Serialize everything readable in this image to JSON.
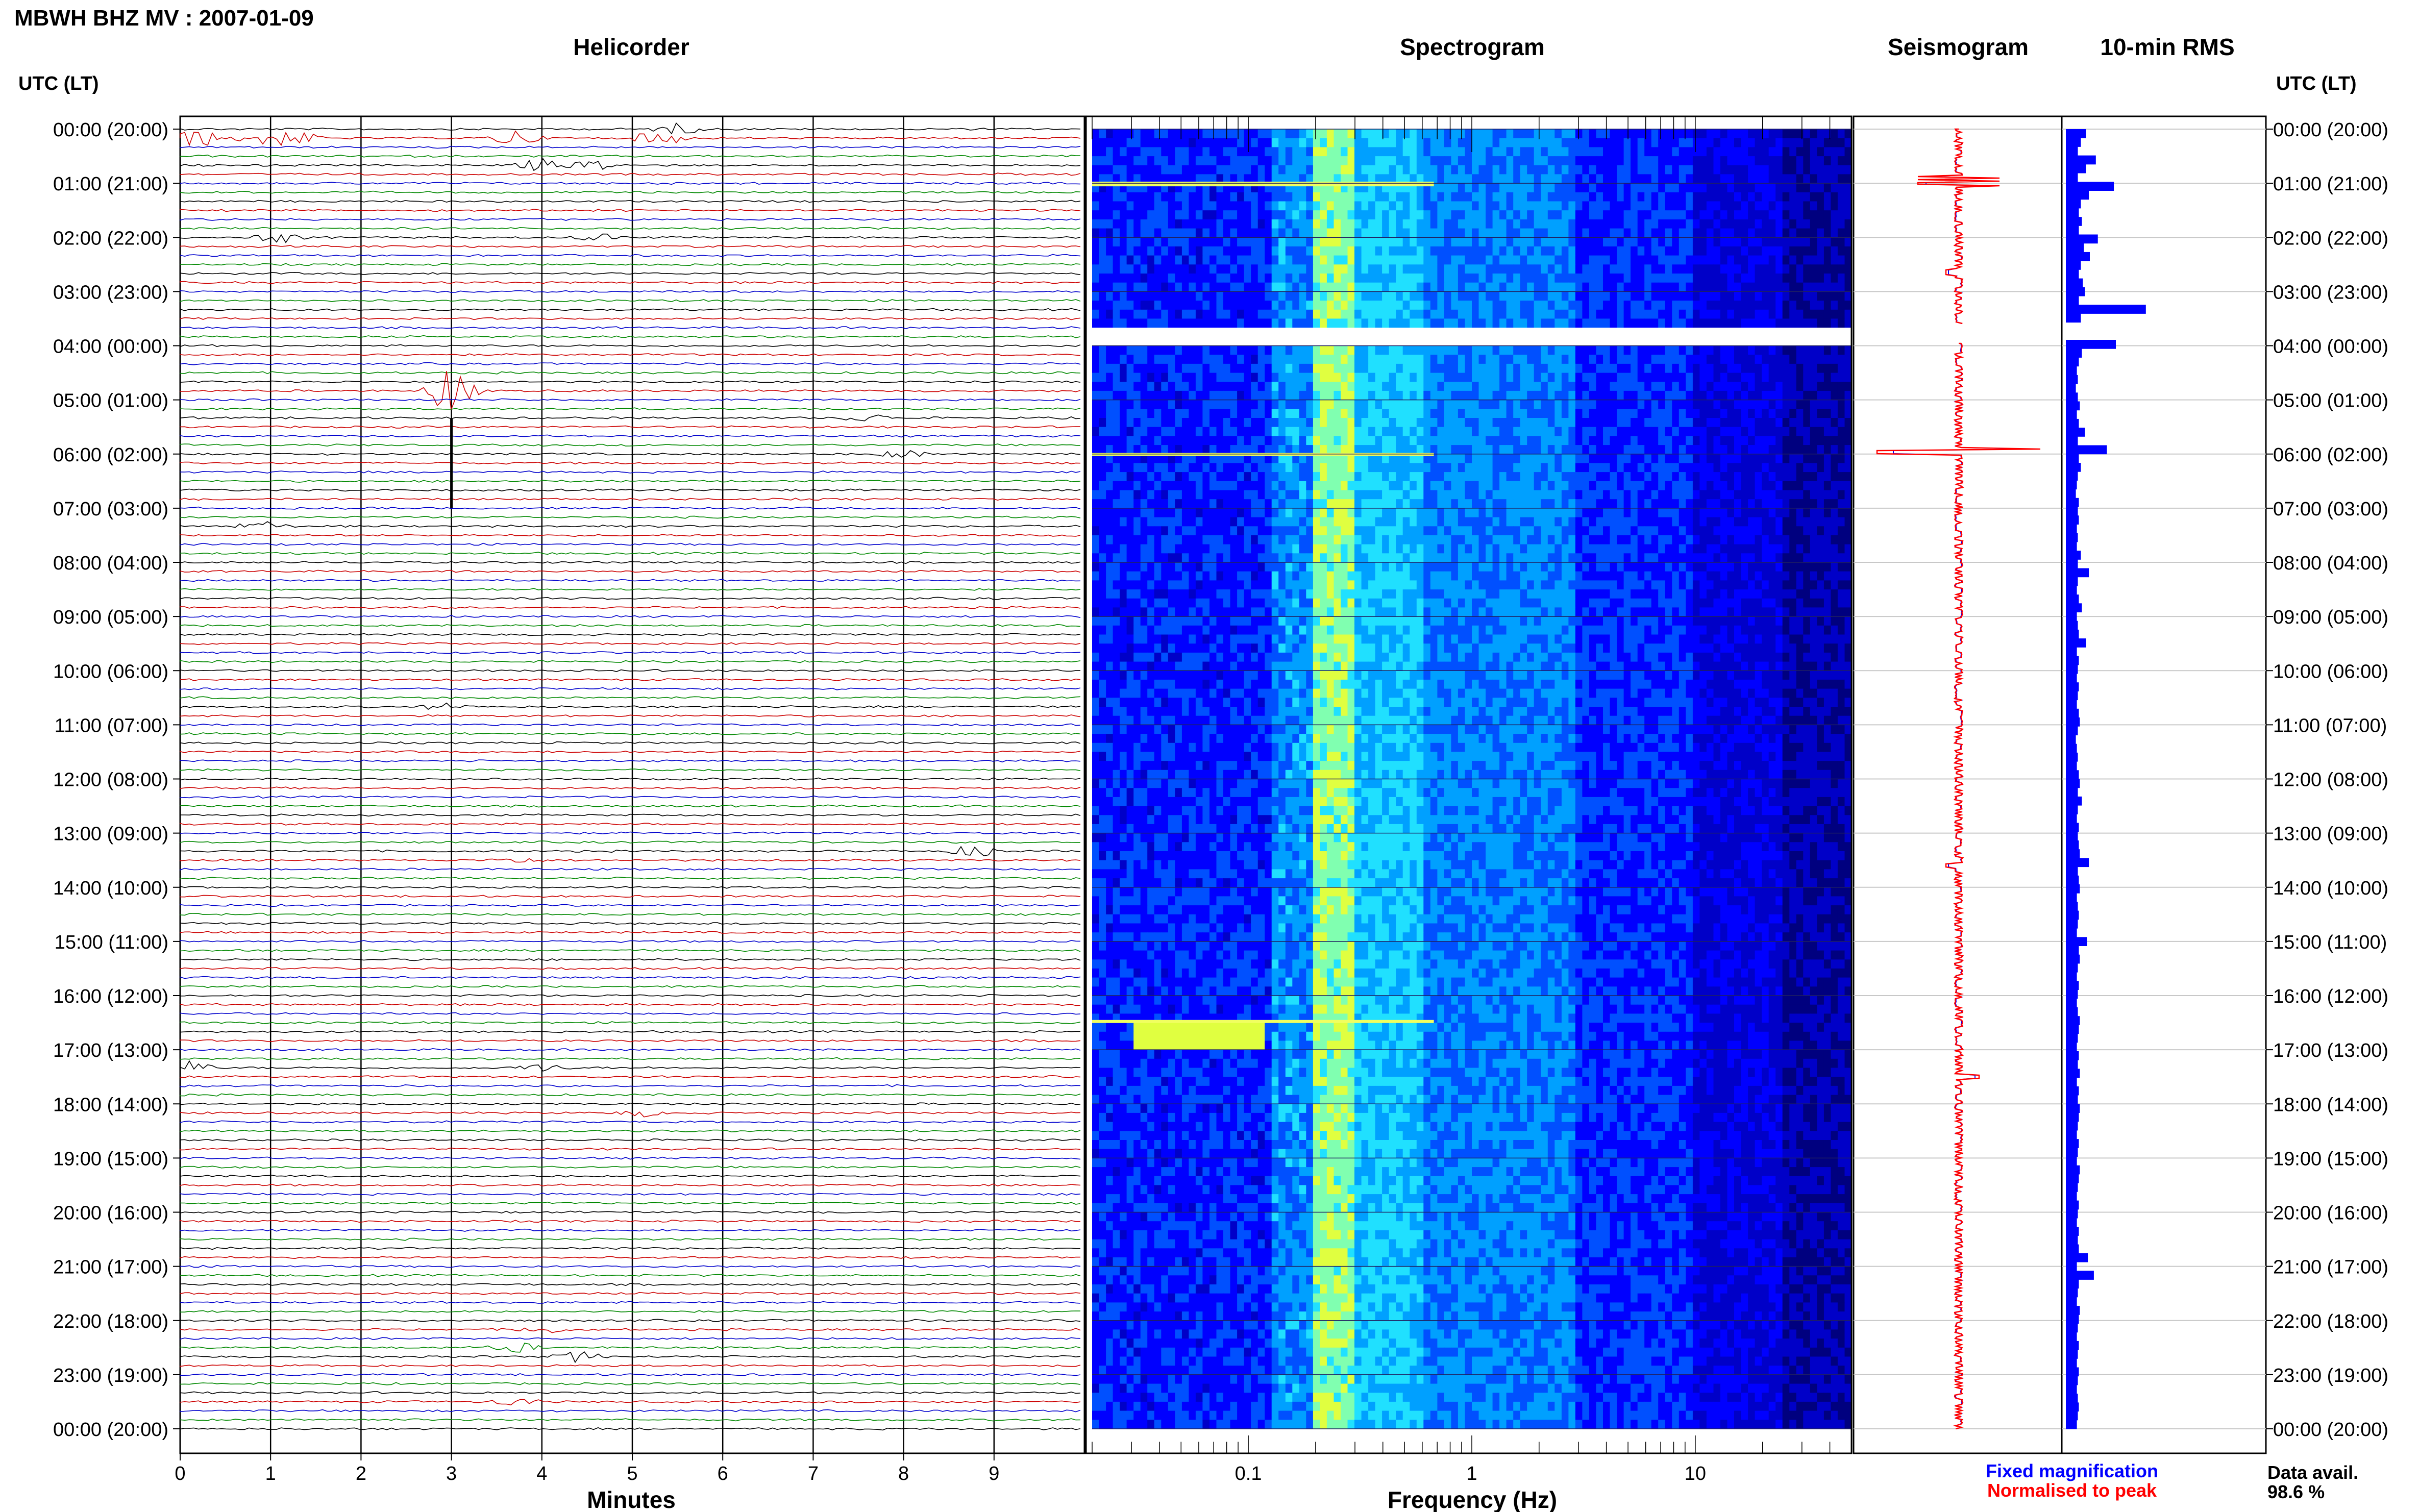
{
  "header": {
    "station_title": "MBWH BHZ MV : 2007-01-09",
    "utc_lt_left": "UTC (LT)",
    "utc_lt_right": "UTC (LT)"
  },
  "panels": {
    "helicorder_title": "Helicorder",
    "spectrogram_title": "Spectrogram",
    "seismogram_title": "Seismogram",
    "rms_title": "10-min RMS"
  },
  "footer": {
    "minutes_label": "Minutes",
    "frequency_label": "Frequency (Hz)",
    "legend_fixed": "Fixed magnification",
    "legend_normalised": "Normalised to peak",
    "data_avail_label": "Data avail.",
    "data_avail_value": "98.6 %"
  },
  "colors": {
    "helicorder_traces": [
      "#000000",
      "#cc0000",
      "#0000cc",
      "#008800"
    ],
    "fixed_magnification": "#0000ff",
    "normalised_to_peak": "#ff0000",
    "rms_bar": "#0000ff",
    "spectrogram_colormap": [
      "#00007f",
      "#0000ff",
      "#0080ff",
      "#00ffff",
      "#80ff80",
      "#ffff00"
    ]
  },
  "chart_data": [
    {
      "type": "line",
      "name": "helicorder",
      "title": "Helicorder",
      "xlabel": "Minutes",
      "xticks": [
        "0",
        "1",
        "2",
        "3",
        "4",
        "5",
        "6",
        "7",
        "8",
        "9"
      ],
      "xlim": [
        0,
        10
      ],
      "rows_per_hour": 6,
      "row_labels": [
        "00:00 (20:00)",
        "01:00 (21:00)",
        "02:00 (22:00)",
        "03:00 (23:00)",
        "04:00 (00:00)",
        "05:00 (01:00)",
        "06:00 (02:00)",
        "07:00 (03:00)",
        "08:00 (04:00)",
        "09:00 (05:00)",
        "10:00 (06:00)",
        "11:00 (07:00)",
        "12:00 (08:00)",
        "13:00 (09:00)",
        "14:00 (10:00)",
        "15:00 (11:00)",
        "16:00 (12:00)",
        "17:00 (13:00)",
        "18:00 (14:00)",
        "19:00 (15:00)",
        "20:00 (16:00)",
        "21:00 (17:00)",
        "22:00 (18:00)",
        "23:00 (19:00)",
        "00:00 (20:00)"
      ],
      "events": [
        {
          "row": 0,
          "minute": 5.5,
          "amp": 0.5
        },
        {
          "row": 1,
          "minute": 0.2,
          "amp": 0.9
        },
        {
          "row": 1,
          "minute": 0.9,
          "amp": 0.8
        },
        {
          "row": 1,
          "minute": 1.3,
          "amp": 0.6
        },
        {
          "row": 1,
          "minute": 3.7,
          "amp": 0.8
        },
        {
          "row": 1,
          "minute": 5.3,
          "amp": 0.8
        },
        {
          "row": 4,
          "minute": 4.0,
          "amp": 0.6
        },
        {
          "row": 4,
          "minute": 4.6,
          "amp": 0.5
        },
        {
          "row": 12,
          "minute": 1.1,
          "amp": 0.5
        },
        {
          "row": 12,
          "minute": 4.6,
          "amp": 0.4
        },
        {
          "row": 29,
          "minute": 3.0,
          "amp": 2.5
        },
        {
          "row": 32,
          "minute": 7.6,
          "amp": 0.4
        },
        {
          "row": 36,
          "minute": 8.0,
          "amp": 0.4
        },
        {
          "row": 44,
          "minute": 0.9,
          "amp": 0.5
        },
        {
          "row": 64,
          "minute": 2.9,
          "amp": 0.3
        },
        {
          "row": 80,
          "minute": 8.8,
          "amp": 0.6
        },
        {
          "row": 81,
          "minute": 3.7,
          "amp": 0.3
        },
        {
          "row": 104,
          "minute": 0.1,
          "amp": 0.6
        },
        {
          "row": 104,
          "minute": 4.0,
          "amp": 0.4
        },
        {
          "row": 109,
          "minute": 5.1,
          "amp": 0.3
        },
        {
          "row": 133,
          "minute": 4.0,
          "amp": 0.4
        },
        {
          "row": 136,
          "minute": 4.4,
          "amp": 0.5
        },
        {
          "row": 135,
          "minute": 3.7,
          "amp": 0.5
        },
        {
          "row": 141,
          "minute": 3.7,
          "amp": 0.4
        }
      ]
    },
    {
      "type": "heatmap",
      "name": "spectrogram",
      "title": "Spectrogram",
      "xlabel": "Frequency (Hz)",
      "xscale": "log",
      "xticks": [
        "0.1",
        "1",
        "10"
      ],
      "xlim": [
        0.02,
        50
      ],
      "peak_band_hz": [
        0.2,
        0.3
      ],
      "gaps": [
        {
          "from_hour": 3.6,
          "to_hour": 3.95
        },
        {
          "from_hour": 2.03,
          "to_hour": 2.07
        }
      ],
      "bright_lines_hour": [
        0.97,
        1.0,
        5.98,
        16.45
      ]
    },
    {
      "type": "line",
      "name": "seismogram",
      "title": "Seismogram",
      "series": [
        {
          "name": "Fixed magnification"
        },
        {
          "name": "Normalised to peak"
        }
      ]
    },
    {
      "type": "bar",
      "name": "rms",
      "title": "10-min RMS",
      "values": [
        2,
        1.5,
        1.2,
        3,
        2,
        1.2,
        4.8,
        2.3,
        1.5,
        1.3,
        1.6,
        1.3,
        3.2,
        1.8,
        2.4,
        1.5,
        1.3,
        1.7,
        1.9,
        1.3,
        8,
        1.5,
        1.4,
        1.2,
        5,
        1.6,
        1.3,
        1.1,
        1.2,
        1,
        1.2,
        1.4,
        1.1,
        1.3,
        1.9,
        1.2,
        4.1,
        1.3,
        1.5,
        1.2,
        1.1,
        1,
        1.3,
        1.2,
        1.3,
        1.1,
        1.2,
        1.1,
        1.5,
        1.2,
        2.3,
        1.2,
        1.1,
        1.3,
        1.6,
        1.1,
        1.2,
        1.3,
        2,
        1.1,
        1.3,
        1.2,
        1.1,
        1.3,
        1.2,
        1.1,
        1.3,
        1.4,
        1.2,
        1,
        1.1,
        1.2,
        1.1,
        1.3,
        1.4,
        1.2,
        1.6,
        1.2,
        1.1,
        1.3,
        1.2,
        1.3,
        1.4,
        2.3,
        1.2,
        1.3,
        1.4,
        1.1,
        1.2,
        1.3,
        1.2,
        1.1,
        2.1,
        1.3,
        1.4,
        1.2,
        1.1,
        1.3,
        1.2,
        1.1,
        1.2,
        1.4,
        1.3,
        1.2,
        1.1,
        1.3,
        1.2,
        1.4,
        1.1,
        1.3,
        1.2,
        1.4,
        1.3,
        1.2,
        1.1,
        1.3,
        1.2,
        1.1,
        1.4,
        1.3,
        1.2,
        1.1,
        1.3,
        1.2,
        1.1,
        1.3,
        1.2,
        1.3,
        2.2,
        1.1,
        2.8,
        1.3,
        1.2,
        1.1,
        1.4,
        1.3,
        1.2,
        1.1,
        1.3,
        1.2,
        1.1,
        1.3,
        1.2,
        1.1,
        1.2,
        1.3,
        1.2,
        1.1
      ],
      "xlim": [
        0,
        20
      ]
    }
  ]
}
